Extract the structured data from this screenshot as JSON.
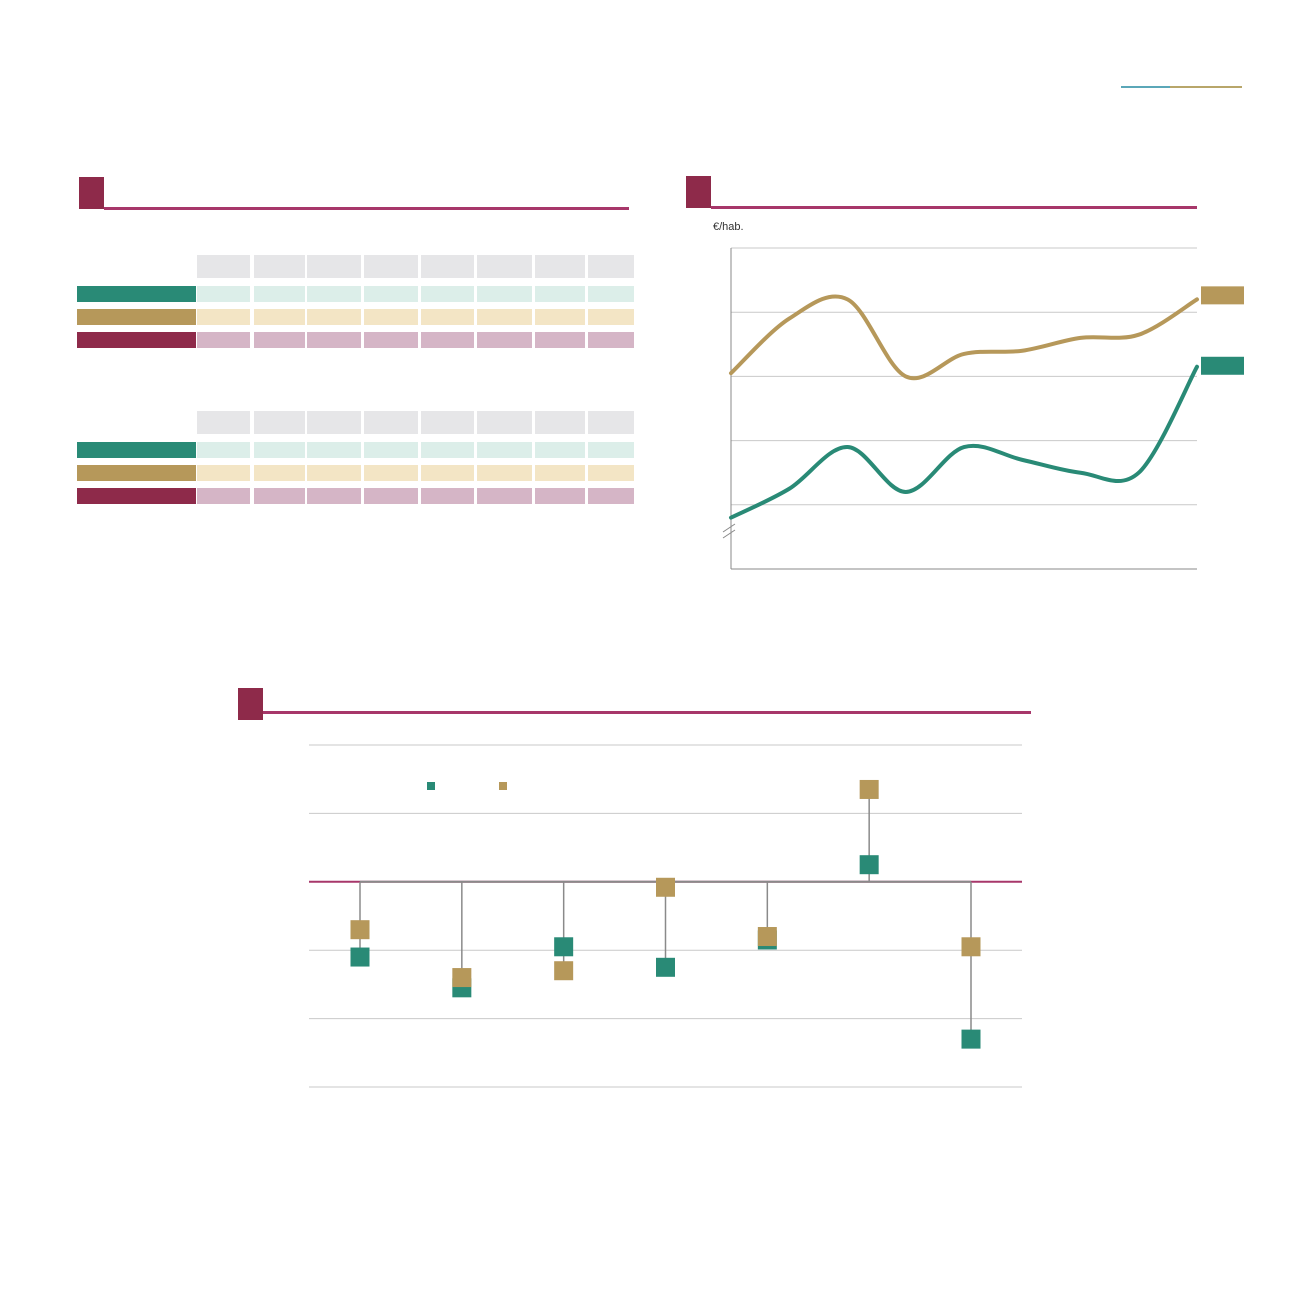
{
  "colors": {
    "teal": "#298a76",
    "gold": "#b6985a",
    "maroon": "#8e2a4a",
    "rule": "#a7376a",
    "grid": "#c9c9c9",
    "teal_light": "#dceee9",
    "gold_light": "#f3e5c5",
    "maroon_light": "#d5b5c6",
    "header_gray": "#e6e6e8"
  },
  "tables": [
    {
      "rows": [
        {
          "color": "teal"
        },
        {
          "color": "gold"
        },
        {
          "color": "maroon"
        }
      ],
      "column_count": 8
    },
    {
      "rows": [
        {
          "color": "teal"
        },
        {
          "color": "gold"
        },
        {
          "color": "maroon"
        }
      ],
      "column_count": 8
    }
  ],
  "line_chart_unit": "€/hab.",
  "chart_data": [
    {
      "type": "line",
      "ylabel": "€/hab.",
      "ylim": [
        0,
        5
      ],
      "grid": true,
      "axis_break": true,
      "x": [
        0,
        1,
        2,
        3,
        4,
        5,
        6,
        7,
        8
      ],
      "series": [
        {
          "color": "gold",
          "values": [
            3.05,
            3.9,
            4.2,
            3.0,
            3.35,
            3.4,
            3.6,
            3.65,
            4.2
          ]
        },
        {
          "color": "teal",
          "values": [
            0.8,
            1.25,
            1.9,
            1.2,
            1.9,
            1.7,
            1.5,
            1.5,
            3.15
          ]
        }
      ]
    },
    {
      "type": "scatter",
      "subtype": "dumbbell",
      "ylim": [
        -3,
        2
      ],
      "baseline": 0,
      "grid": true,
      "legend": [
        {
          "color": "teal"
        },
        {
          "color": "gold"
        }
      ],
      "categories": [
        "",
        "",
        "",
        "",
        "",
        "",
        ""
      ],
      "series": [
        {
          "color": "teal",
          "values": [
            -1.1,
            -1.55,
            -0.95,
            -1.25,
            -0.85,
            0.25,
            -2.3
          ]
        },
        {
          "color": "gold",
          "values": [
            -0.7,
            -1.4,
            -1.3,
            -0.08,
            -0.8,
            1.35,
            -0.95
          ]
        }
      ]
    }
  ]
}
